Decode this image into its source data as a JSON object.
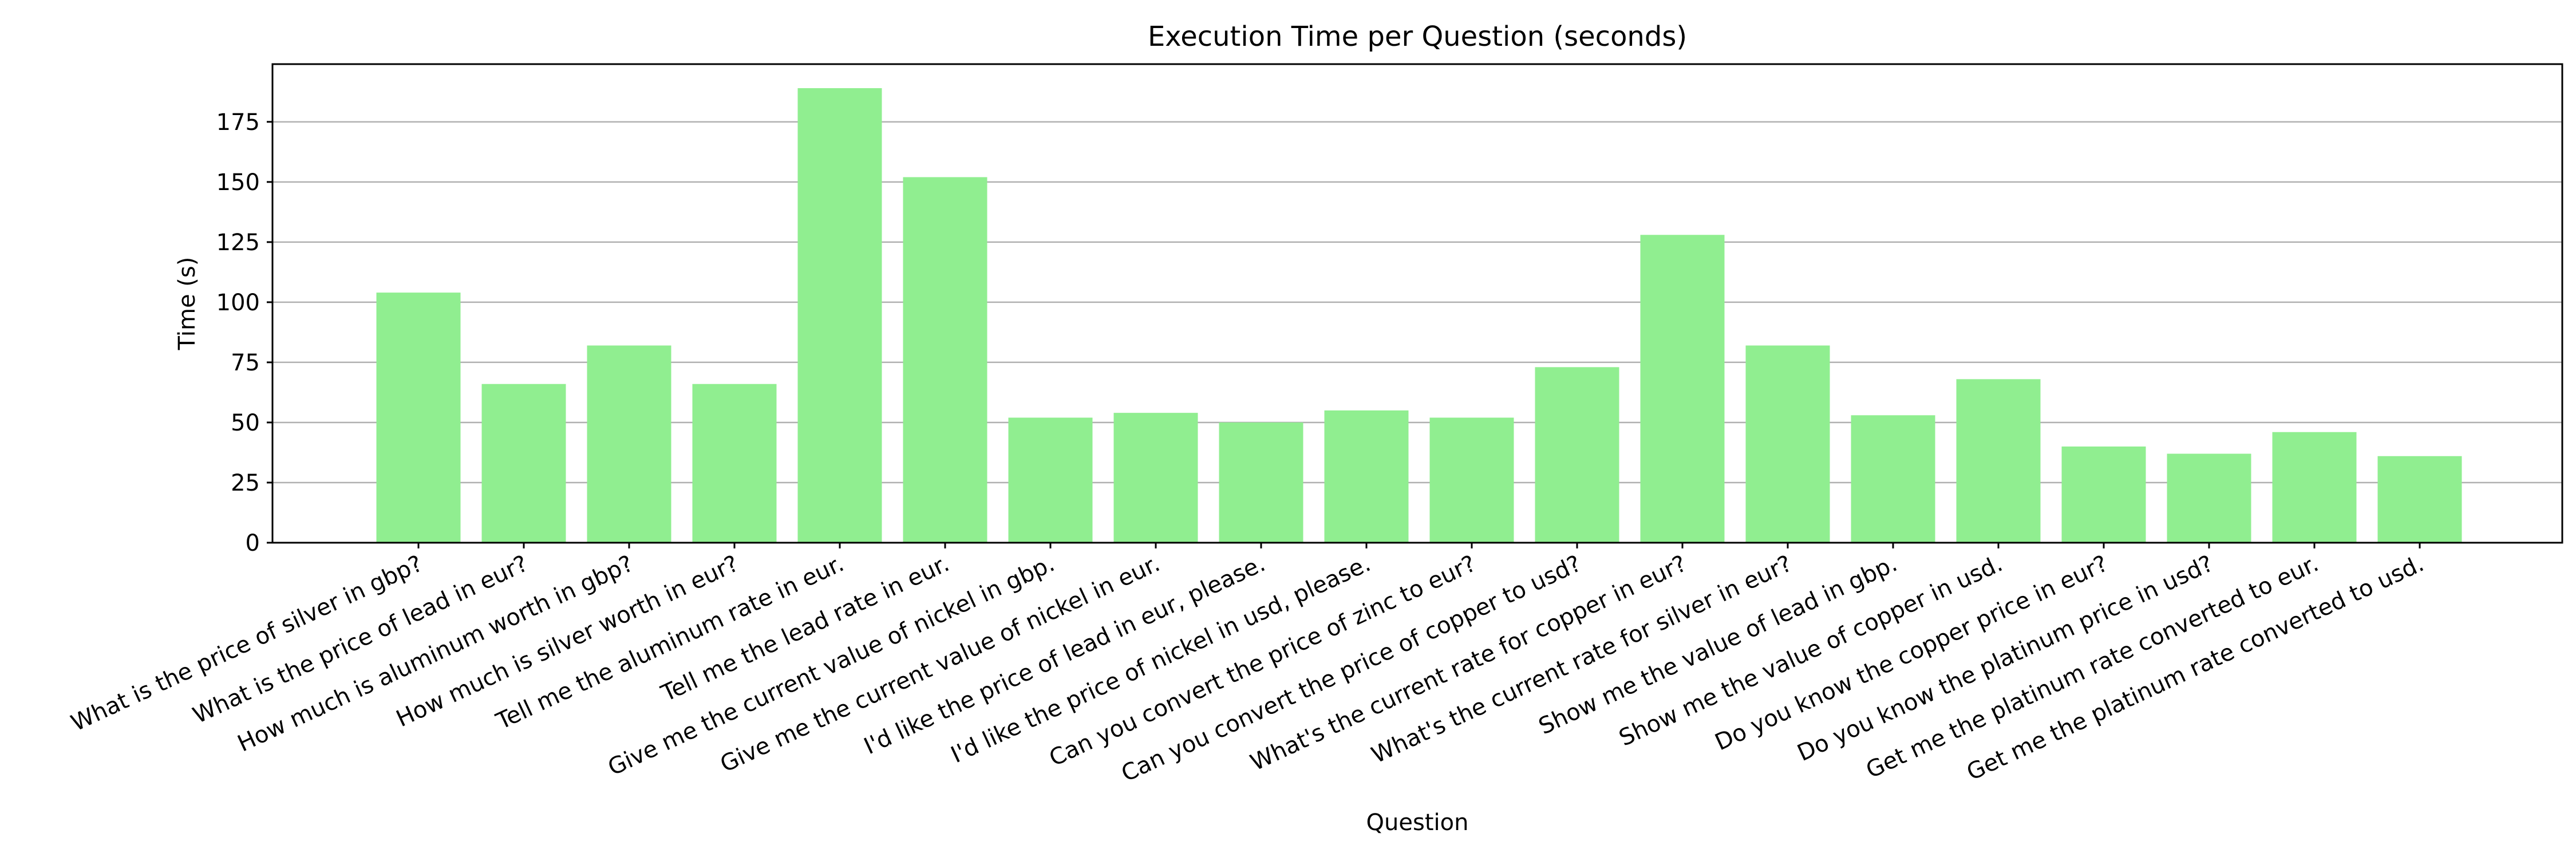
{
  "chart_data": {
    "type": "bar",
    "title": "Execution Time per Question (seconds)",
    "xlabel": "Question",
    "ylabel": "Time (s)",
    "ylim": [
      0,
      199
    ],
    "yticks": [
      0,
      25,
      50,
      75,
      100,
      125,
      150,
      175
    ],
    "grid": "horizontal",
    "bar_color": "#90ee90",
    "categories": [
      "What is the price of silver in gbp?",
      "What is the price of lead in eur?",
      "How much is aluminum worth in gbp?",
      "How much is silver worth in eur?",
      "Tell me the aluminum rate in eur.",
      "Tell me the lead rate in eur.",
      "Give me the current value of nickel in gbp.",
      "Give me the current value of nickel in eur.",
      "I'd like the price of lead in eur, please.",
      "I'd like the price of nickel in usd, please.",
      "Can you convert the price of zinc to eur?",
      "Can you convert the price of copper to usd?",
      "What's the current rate for copper in eur?",
      "What's the current rate for silver in eur?",
      "Show me the value of lead in gbp.",
      "Show me the value of copper in usd.",
      "Do you know the copper price in eur?",
      "Do you know the platinum price in usd?",
      "Get me the platinum rate converted to eur.",
      "Get me the platinum rate converted to usd."
    ],
    "values": [
      104,
      66,
      82,
      66,
      189,
      152,
      52,
      54,
      50,
      55,
      52,
      73,
      128,
      82,
      53,
      68,
      40,
      37,
      46,
      36
    ]
  }
}
